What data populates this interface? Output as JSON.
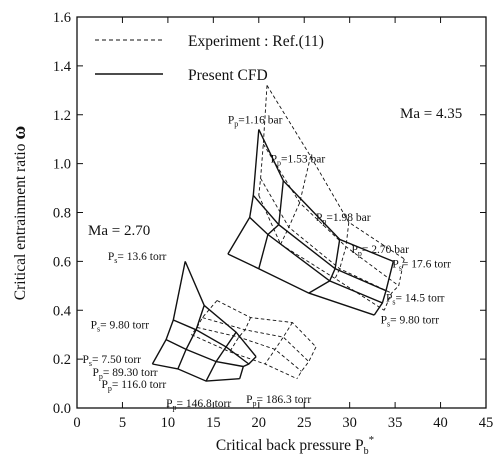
{
  "chart_data": {
    "type": "line",
    "xlabel": "Critical back pressure P",
    "xlabel_sub": "b",
    "xlabel_sup": "*",
    "ylabel": "Critical entrainment ratio ",
    "ylabel_symbol": "ω",
    "xlim": [
      0,
      45
    ],
    "ylim": [
      0,
      1.6
    ],
    "x_ticks": [
      0,
      5,
      10,
      15,
      20,
      25,
      30,
      35,
      40,
      45
    ],
    "y_ticks": [
      0.0,
      0.2,
      0.4,
      0.6,
      0.8,
      1.0,
      1.2,
      1.4,
      1.6
    ],
    "legend": {
      "position": "top-left",
      "entries": [
        {
          "label": "Experiment : Ref.(11)",
          "style": "dashed"
        },
        {
          "label": "Present CFD",
          "style": "solid"
        }
      ]
    },
    "mach_labels": [
      {
        "text": "Ma = 4.35",
        "x": 35.5,
        "y": 1.04
      },
      {
        "text": "Ma = 2.70",
        "x": 3.0,
        "y": 0.725
      }
    ],
    "annotations": [
      {
        "text": "P",
        "sub": "p",
        "rest": "=1.16 bar",
        "x": 16.6,
        "y": 1.165
      },
      {
        "text": "P",
        "sub": "p",
        "rest": "=1.53 bar",
        "x": 21.3,
        "y": 1.005
      },
      {
        "text": "P",
        "sub": "p",
        "rest": "=1.98 bar",
        "x": 26.3,
        "y": 0.765
      },
      {
        "text": "P",
        "sub": "p",
        "rest": "= 2.70 bar",
        "x": 30.2,
        "y": 0.635
      },
      {
        "text": "P",
        "sub": "s",
        "rest": "= 17.6 torr",
        "x": 34.7,
        "y": 0.575
      },
      {
        "text": "P",
        "sub": "s",
        "rest": "= 14.5 torr",
        "x": 34.0,
        "y": 0.435
      },
      {
        "text": "P",
        "sub": "s",
        "rest": "= 9.80 torr",
        "x": 33.4,
        "y": 0.345
      },
      {
        "text": "P",
        "sub": "s",
        "rest": "= 13.6 torr",
        "x": 3.4,
        "y": 0.605
      },
      {
        "text": "P",
        "sub": "s",
        "rest": "= 9.80 torr",
        "x": 1.5,
        "y": 0.325
      },
      {
        "text": "P",
        "sub": "s",
        "rest": "= 7.50 torr",
        "x": 0.6,
        "y": 0.185
      },
      {
        "text": "P",
        "sub": "p",
        "rest": "= 89.30 torr",
        "x": 1.7,
        "y": 0.13
      },
      {
        "text": "P",
        "sub": "p",
        "rest": "= 116.0 torr",
        "x": 2.7,
        "y": 0.082
      },
      {
        "text": "P",
        "sub": "p",
        "rest": "= 146.8 torr",
        "x": 9.8,
        "y": 0.005
      },
      {
        "text": "P",
        "sub": "p",
        "rest": "= 186.3 torr",
        "x": 18.6,
        "y": 0.02
      }
    ],
    "series": [
      {
        "style": "solid",
        "points": [
          [
            20.0,
            1.14
          ],
          [
            22.7,
            0.93
          ],
          [
            28.9,
            0.69
          ],
          [
            34.8,
            0.6
          ]
        ]
      },
      {
        "style": "solid",
        "points": [
          [
            19.4,
            0.87
          ],
          [
            22.2,
            0.75
          ],
          [
            28.4,
            0.57
          ],
          [
            34.0,
            0.48
          ]
        ]
      },
      {
        "style": "solid",
        "points": [
          [
            19.0,
            0.78
          ],
          [
            21.0,
            0.71
          ],
          [
            27.8,
            0.52
          ],
          [
            33.6,
            0.43
          ]
        ]
      },
      {
        "style": "solid",
        "points": [
          [
            16.6,
            0.63
          ],
          [
            20.0,
            0.57
          ],
          [
            25.5,
            0.47
          ],
          [
            32.7,
            0.38
          ]
        ]
      },
      {
        "style": "solid",
        "points": [
          [
            20.0,
            1.14
          ],
          [
            19.4,
            0.87
          ],
          [
            19.0,
            0.78
          ],
          [
            16.6,
            0.63
          ]
        ]
      },
      {
        "style": "solid",
        "points": [
          [
            22.7,
            0.93
          ],
          [
            22.2,
            0.75
          ],
          [
            21.0,
            0.71
          ],
          [
            20.0,
            0.57
          ]
        ]
      },
      {
        "style": "solid",
        "points": [
          [
            28.9,
            0.69
          ],
          [
            28.4,
            0.57
          ],
          [
            27.8,
            0.52
          ],
          [
            25.5,
            0.47
          ]
        ]
      },
      {
        "style": "solid",
        "points": [
          [
            34.8,
            0.6
          ],
          [
            34.0,
            0.48
          ],
          [
            33.6,
            0.43
          ],
          [
            32.7,
            0.38
          ]
        ]
      },
      {
        "style": "solid",
        "points": [
          [
            11.9,
            0.6
          ],
          [
            14.0,
            0.42
          ],
          [
            17.5,
            0.31
          ],
          [
            19.7,
            0.21
          ]
        ]
      },
      {
        "style": "solid",
        "points": [
          [
            10.6,
            0.36
          ],
          [
            13.1,
            0.32
          ],
          [
            16.4,
            0.25
          ],
          [
            18.9,
            0.18
          ]
        ]
      },
      {
        "style": "solid",
        "points": [
          [
            9.8,
            0.28
          ],
          [
            12.0,
            0.24
          ],
          [
            15.3,
            0.19
          ],
          [
            18.3,
            0.17
          ]
        ]
      },
      {
        "style": "solid",
        "points": [
          [
            8.3,
            0.18
          ],
          [
            11.1,
            0.16
          ],
          [
            14.2,
            0.11
          ],
          [
            17.9,
            0.12
          ]
        ]
      },
      {
        "style": "solid",
        "points": [
          [
            11.9,
            0.6
          ],
          [
            10.6,
            0.36
          ],
          [
            9.8,
            0.28
          ],
          [
            8.3,
            0.18
          ]
        ]
      },
      {
        "style": "solid",
        "points": [
          [
            14.0,
            0.42
          ],
          [
            13.1,
            0.32
          ],
          [
            12.0,
            0.24
          ],
          [
            11.1,
            0.16
          ]
        ]
      },
      {
        "style": "solid",
        "points": [
          [
            17.5,
            0.31
          ],
          [
            16.4,
            0.25
          ],
          [
            15.3,
            0.19
          ],
          [
            14.2,
            0.11
          ]
        ]
      },
      {
        "style": "solid",
        "points": [
          [
            19.7,
            0.21
          ],
          [
            18.9,
            0.18
          ],
          [
            18.3,
            0.17
          ],
          [
            17.9,
            0.12
          ]
        ]
      },
      {
        "style": "dashed",
        "points": [
          [
            20.9,
            1.32
          ],
          [
            25.7,
            1.03
          ],
          [
            29.9,
            0.76
          ],
          [
            36.0,
            0.61
          ]
        ]
      },
      {
        "style": "dashed",
        "points": [
          [
            20.5,
            1.08
          ],
          [
            24.5,
            0.84
          ],
          [
            29.6,
            0.66
          ],
          [
            35.4,
            0.5
          ]
        ]
      },
      {
        "style": "dashed",
        "points": [
          [
            20.2,
            0.94
          ],
          [
            23.3,
            0.74
          ],
          [
            28.9,
            0.57
          ],
          [
            34.6,
            0.47
          ]
        ]
      },
      {
        "style": "dashed",
        "points": [
          [
            20.0,
            0.87
          ],
          [
            22.4,
            0.67
          ],
          [
            28.4,
            0.53
          ],
          [
            33.8,
            0.4
          ]
        ]
      },
      {
        "style": "dashed",
        "points": [
          [
            20.9,
            1.32
          ],
          [
            20.5,
            1.08
          ],
          [
            20.2,
            0.94
          ],
          [
            20.0,
            0.87
          ]
        ]
      },
      {
        "style": "dashed",
        "points": [
          [
            25.7,
            1.03
          ],
          [
            24.5,
            0.84
          ],
          [
            23.3,
            0.74
          ],
          [
            22.4,
            0.67
          ]
        ]
      },
      {
        "style": "dashed",
        "points": [
          [
            29.9,
            0.76
          ],
          [
            29.6,
            0.66
          ],
          [
            28.9,
            0.57
          ],
          [
            28.4,
            0.53
          ]
        ]
      },
      {
        "style": "dashed",
        "points": [
          [
            36.0,
            0.61
          ],
          [
            35.4,
            0.5
          ],
          [
            34.6,
            0.47
          ],
          [
            33.8,
            0.4
          ]
        ]
      },
      {
        "style": "dashed",
        "points": [
          [
            15.4,
            0.44
          ],
          [
            19.1,
            0.37
          ],
          [
            23.7,
            0.35
          ],
          [
            26.3,
            0.25
          ]
        ]
      },
      {
        "style": "dashed",
        "points": [
          [
            13.8,
            0.37
          ],
          [
            18.5,
            0.32
          ],
          [
            22.7,
            0.29
          ],
          [
            25.5,
            0.19
          ]
        ]
      },
      {
        "style": "dashed",
        "points": [
          [
            13.2,
            0.33
          ],
          [
            17.8,
            0.29
          ],
          [
            21.8,
            0.24
          ],
          [
            24.7,
            0.15
          ]
        ]
      },
      {
        "style": "dashed",
        "points": [
          [
            12.6,
            0.3
          ],
          [
            16.8,
            0.23
          ],
          [
            20.7,
            0.18
          ],
          [
            24.2,
            0.12
          ]
        ]
      },
      {
        "style": "dashed",
        "points": [
          [
            15.4,
            0.44
          ],
          [
            13.8,
            0.37
          ],
          [
            13.2,
            0.33
          ],
          [
            12.6,
            0.3
          ]
        ]
      },
      {
        "style": "dashed",
        "points": [
          [
            19.1,
            0.37
          ],
          [
            18.5,
            0.32
          ],
          [
            17.8,
            0.29
          ],
          [
            16.8,
            0.23
          ]
        ]
      },
      {
        "style": "dashed",
        "points": [
          [
            23.7,
            0.35
          ],
          [
            22.7,
            0.29
          ],
          [
            21.8,
            0.24
          ],
          [
            20.7,
            0.18
          ]
        ]
      },
      {
        "style": "dashed",
        "points": [
          [
            26.3,
            0.25
          ],
          [
            25.5,
            0.19
          ],
          [
            24.7,
            0.15
          ],
          [
            24.2,
            0.12
          ]
        ]
      }
    ]
  }
}
